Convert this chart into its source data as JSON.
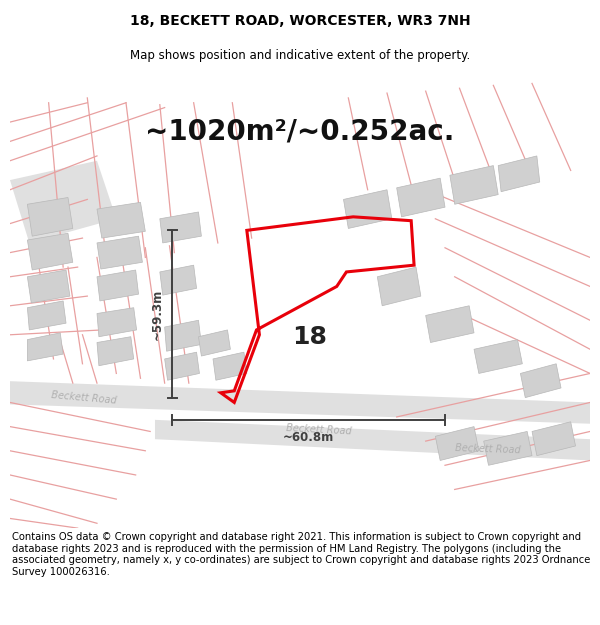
{
  "title": "18, BECKETT ROAD, WORCESTER, WR3 7NH",
  "subtitle": "Map shows position and indicative extent of the property.",
  "area_label": "~1020m²/~0.252ac.",
  "property_number": "18",
  "dim_height": "~59.3m",
  "dim_width": "~60.8m",
  "footer": "Contains OS data © Crown copyright and database right 2021. This information is subject to Crown copyright and database rights 2023 and is reproduced with the permission of HM Land Registry. The polygons (including the associated geometry, namely x, y co-ordinates) are subject to Crown copyright and database rights 2023 Ordnance Survey 100026316.",
  "bg_color": "#ffffff",
  "map_bg": "#f0f0f0",
  "plot_color": "#e8000a",
  "dim_color": "#404040",
  "pink_line_color": "#e8a0a0",
  "building_fill": "#d0d0d0",
  "road_fill": "#e0e0e0",
  "road_label_color": "#b0b0b0",
  "title_fontsize": 10,
  "subtitle_fontsize": 8.5,
  "area_fontsize": 20,
  "prop_num_fontsize": 18,
  "footer_fontsize": 7.2,
  "dim_fontsize": 8.5
}
